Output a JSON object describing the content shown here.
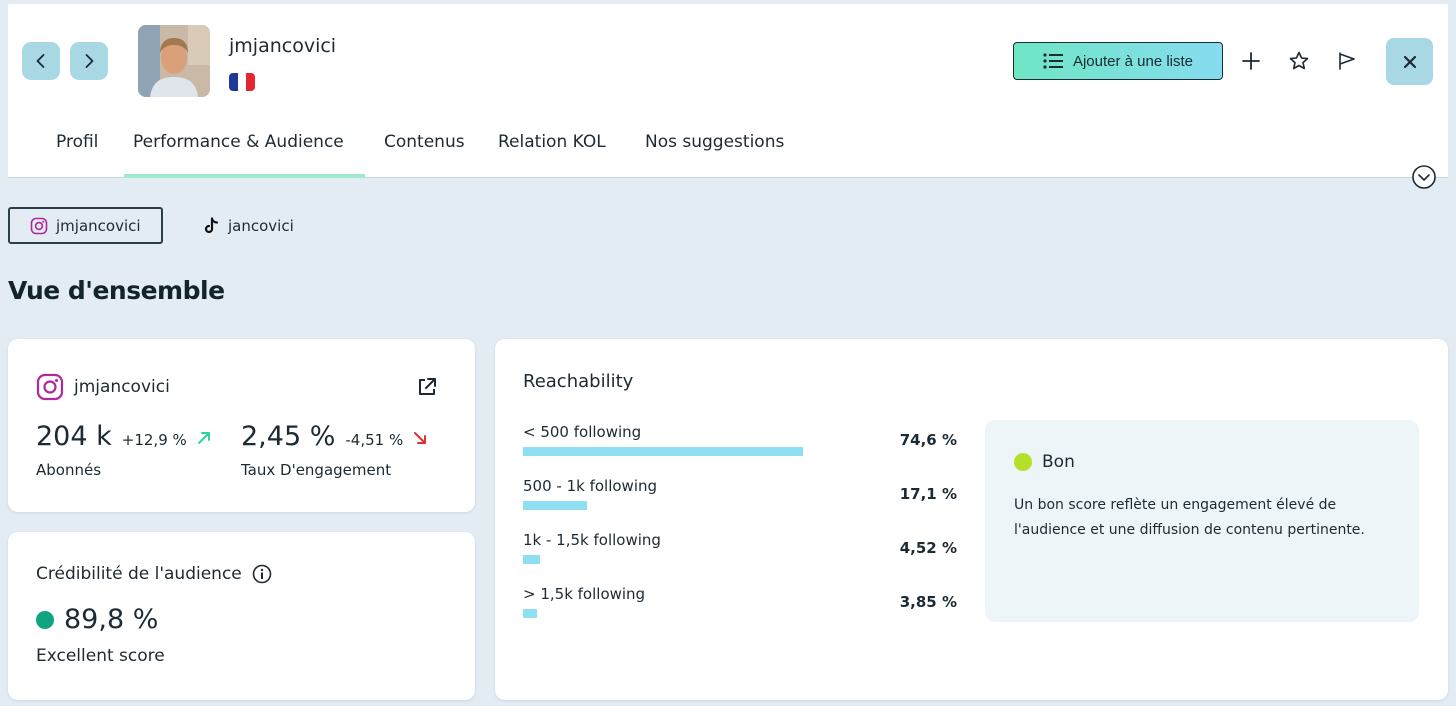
{
  "header": {
    "profile_name": "jmjancovici",
    "country_flag": "france-flag",
    "add_list_label": "Ajouter à une liste"
  },
  "tabs": [
    {
      "label": "Profil",
      "active": false
    },
    {
      "label": "Performance & Audience",
      "active": true
    },
    {
      "label": "Contenus",
      "active": false
    },
    {
      "label": "Relation KOL",
      "active": false
    },
    {
      "label": "Nos suggestions",
      "active": false
    }
  ],
  "accounts": [
    {
      "platform": "instagram",
      "handle": "jmjancovici",
      "active": true
    },
    {
      "platform": "tiktok",
      "handle": "jancovici",
      "active": false
    }
  ],
  "section_title": "Vue d'ensemble",
  "stats_card": {
    "handle": "jmjancovici",
    "followers": {
      "value": "204 k",
      "delta": "+12,9 %",
      "direction": "up",
      "label": "Abonnés"
    },
    "engagement": {
      "value": "2,45 %",
      "delta": "-4,51 %",
      "direction": "down",
      "label": "Taux D'engagement"
    }
  },
  "credibility": {
    "title": "Crédibilité de l'audience",
    "value": "89,8 %",
    "label": "Excellent score",
    "color": "#0fa37f"
  },
  "reachability": {
    "title": "Reachability",
    "rows": [
      {
        "label": "< 500 following",
        "pct_text": "74,6 %",
        "value": 74.6
      },
      {
        "label": "500 - 1k following",
        "pct_text": "17,1 %",
        "value": 17.1
      },
      {
        "label": "1k - 1,5k following",
        "pct_text": "4,52 %",
        "value": 4.52
      },
      {
        "label": "> 1,5k following",
        "pct_text": "3,85 %",
        "value": 3.85
      }
    ],
    "score": {
      "label": "Bon",
      "color": "#b5e02a",
      "text": "Un bon score reflète un engagement élevé de l'audience et une diffusion de contenu pertinente."
    }
  },
  "colors": {
    "accent_teal": "#a9d8e5",
    "tab_underline": "#9fe9cc",
    "bar": "#8fdff3",
    "up_arrow": "#2fd3a3",
    "down_arrow": "#e0322f"
  }
}
